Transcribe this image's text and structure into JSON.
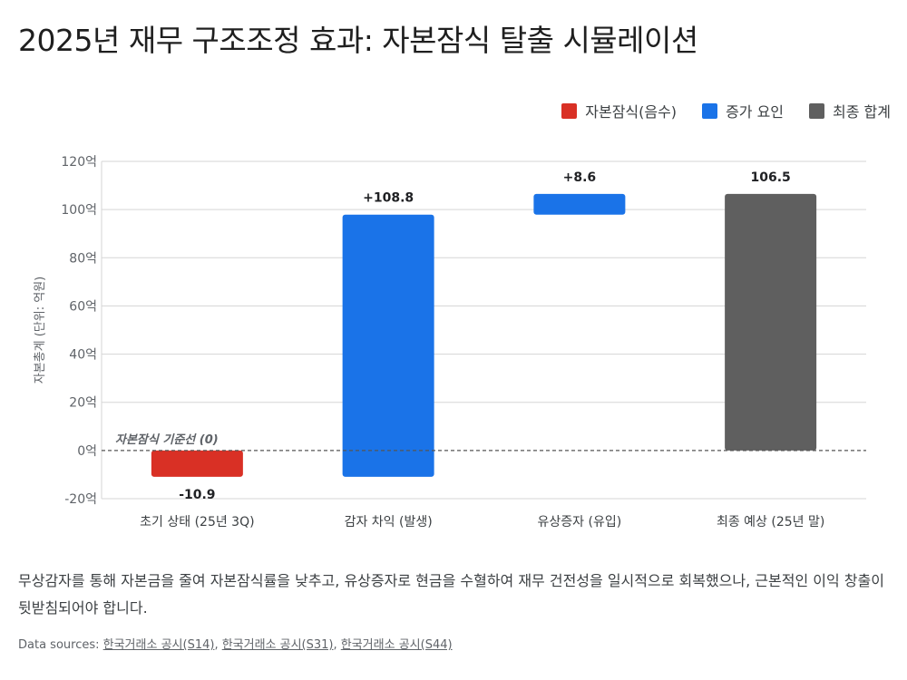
{
  "title": "2025년 재무 구조조정 효과: 자본잠식 탈출 시뮬레이션",
  "legend": [
    {
      "label": "자본잠식(음수)",
      "color": "#d93025"
    },
    {
      "label": "증가 요인",
      "color": "#1a73e8"
    },
    {
      "label": "최종 합계",
      "color": "#5f5f5f"
    }
  ],
  "chart_data": {
    "type": "waterfall",
    "ylabel": "자본총계 (단위: 억원)",
    "ylim": [
      -20,
      120
    ],
    "yticks": [
      -20,
      0,
      20,
      40,
      60,
      80,
      100,
      120
    ],
    "ytick_labels": [
      "-20억",
      "0억",
      "20억",
      "40억",
      "60억",
      "80억",
      "100억",
      "120억"
    ],
    "grid": true,
    "legend_position": "top-right",
    "baseline_label": "자본잠식 기준선 (0)",
    "steps": [
      {
        "category": "초기 상태 (25년 3Q)",
        "start": 0,
        "end": -10.9,
        "label": "-10.9",
        "kind": "negative"
      },
      {
        "category": "감자 차익 (발생)",
        "start": -10.9,
        "end": 97.9,
        "label": "+108.8",
        "kind": "increase"
      },
      {
        "category": "유상증자 (유입)",
        "start": 97.9,
        "end": 106.5,
        "label": "+8.6",
        "kind": "increase"
      },
      {
        "category": "최종 예상 (25년 말)",
        "start": 0,
        "end": 106.5,
        "label": "106.5",
        "kind": "total"
      }
    ],
    "colors": {
      "negative": "#d93025",
      "increase": "#1a73e8",
      "total": "#5f5f5f"
    }
  },
  "description": "무상감자를 통해 자본금을 줄여 자본잠식률을 낮추고, 유상증자로 현금을 수혈하여 재무 건전성을 일시적으로 회복했으나, 근본적인 이익 창출이 뒷받침되어야 합니다.",
  "sources": {
    "prefix": "Data sources:",
    "links": [
      "한국거래소 공시(S14)",
      "한국거래소 공시(S31)",
      "한국거래소 공시(S44)"
    ]
  }
}
